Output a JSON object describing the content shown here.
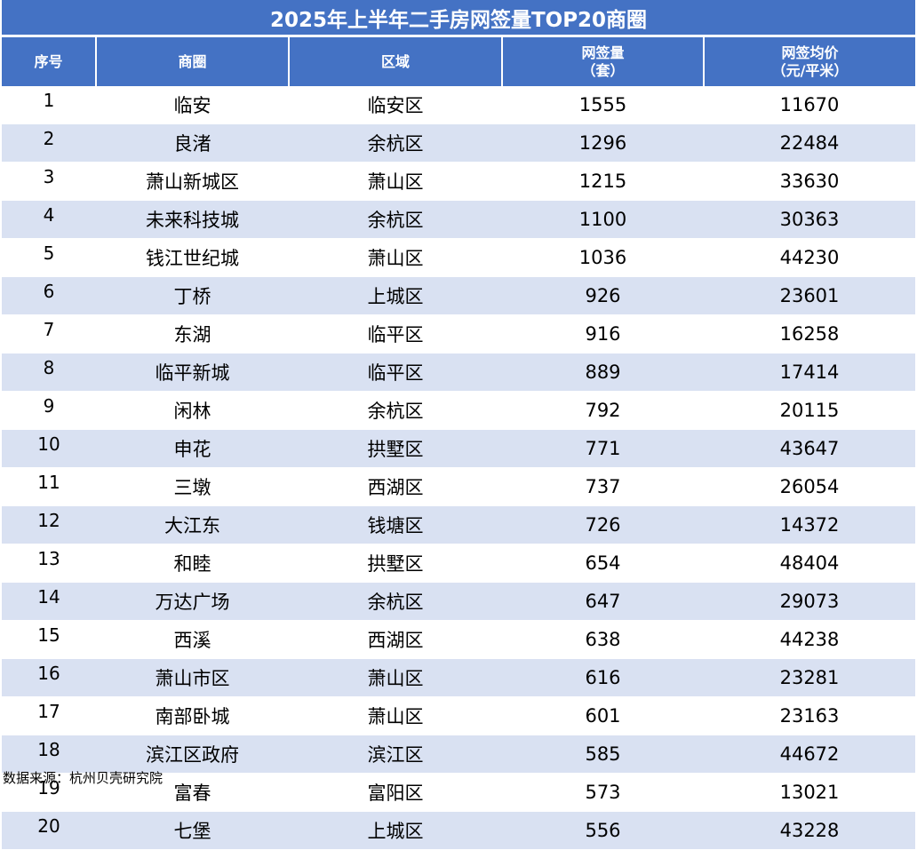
{
  "title": "2025年上半年二手房网签量TOP20商圈",
  "headers": {
    "rank": "序号",
    "area": "商圈",
    "district": "区域",
    "volume_line1": "网签量",
    "volume_line2": "（套）",
    "price_line1": "网签均价",
    "price_line2": "（元/平米）"
  },
  "rows": [
    {
      "rank": "1",
      "area": "临安",
      "district": "临安区",
      "volume": "1555",
      "price": "11670"
    },
    {
      "rank": "2",
      "area": "良渚",
      "district": "余杭区",
      "volume": "1296",
      "price": "22484"
    },
    {
      "rank": "3",
      "area": "萧山新城区",
      "district": "萧山区",
      "volume": "1215",
      "price": "33630"
    },
    {
      "rank": "4",
      "area": "未来科技城",
      "district": "余杭区",
      "volume": "1100",
      "price": "30363"
    },
    {
      "rank": "5",
      "area": "钱江世纪城",
      "district": "萧山区",
      "volume": "1036",
      "price": "44230"
    },
    {
      "rank": "6",
      "area": "丁桥",
      "district": "上城区",
      "volume": "926",
      "price": "23601"
    },
    {
      "rank": "7",
      "area": "东湖",
      "district": "临平区",
      "volume": "916",
      "price": "16258"
    },
    {
      "rank": "8",
      "area": "临平新城",
      "district": "临平区",
      "volume": "889",
      "price": "17414"
    },
    {
      "rank": "9",
      "area": "闲林",
      "district": "余杭区",
      "volume": "792",
      "price": "20115"
    },
    {
      "rank": "10",
      "area": "申花",
      "district": "拱墅区",
      "volume": "771",
      "price": "43647"
    },
    {
      "rank": "11",
      "area": "三墩",
      "district": "西湖区",
      "volume": "737",
      "price": "26054"
    },
    {
      "rank": "12",
      "area": "大江东",
      "district": "钱塘区",
      "volume": "726",
      "price": "14372"
    },
    {
      "rank": "13",
      "area": "和睦",
      "district": "拱墅区",
      "volume": "654",
      "price": "48404"
    },
    {
      "rank": "14",
      "area": "万达广场",
      "district": "余杭区",
      "volume": "647",
      "price": "29073"
    },
    {
      "rank": "15",
      "area": "西溪",
      "district": "西湖区",
      "volume": "638",
      "price": "44238"
    },
    {
      "rank": "16",
      "area": "萧山市区",
      "district": "萧山区",
      "volume": "616",
      "price": "23281"
    },
    {
      "rank": "17",
      "area": "南部卧城",
      "district": "萧山区",
      "volume": "601",
      "price": "23163"
    },
    {
      "rank": "18",
      "area": "滨江区政府",
      "district": "滨江区",
      "volume": "585",
      "price": "44672"
    },
    {
      "rank": "19",
      "area": "富春",
      "district": "富阳区",
      "volume": "573",
      "price": "13021"
    },
    {
      "rank": "20",
      "area": "七堡",
      "district": "上城区",
      "volume": "556",
      "price": "43228"
    }
  ],
  "source": "数据来源：杭州贝壳研究院",
  "colors": {
    "header_bg": "#4472c4",
    "stripe_bg": "#d9e1f2"
  }
}
